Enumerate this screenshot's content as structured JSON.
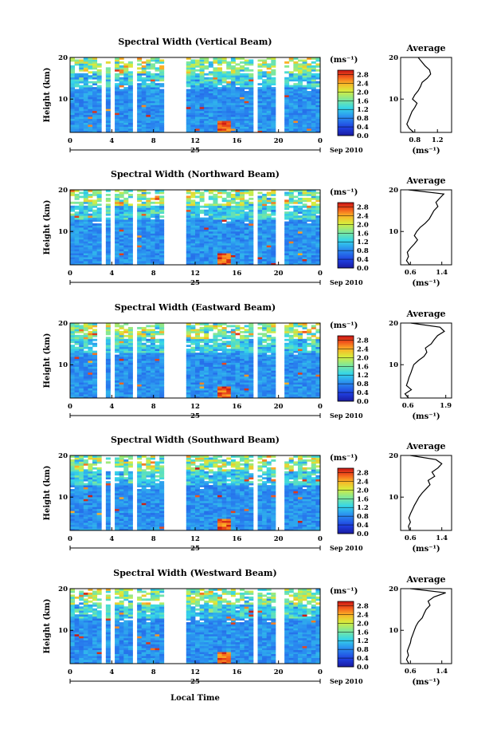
{
  "figure": {
    "xlabel": "Local Time",
    "date_label": "25",
    "month_label": "Sep 2010"
  },
  "chart_data": [
    {
      "type": "heatmap",
      "title": "Spectral Width (Vertical Beam)",
      "ylabel": "Height (km)",
      "x_ticks": [
        "0",
        "4",
        "8",
        "12",
        "16",
        "20",
        "0"
      ],
      "y_ticks": [
        "10",
        "20"
      ],
      "xlim": [
        0,
        24
      ],
      "ylim": [
        2,
        20
      ],
      "colorbar": {
        "unit": "(ms⁻¹)",
        "ticks": [
          "0.0",
          "0.4",
          "0.8",
          "1.2",
          "1.6",
          "2.0",
          "2.4",
          "2.8"
        ],
        "range": [
          0,
          3.0
        ]
      },
      "data_gaps_hours": [
        [
          3.0,
          3.4
        ],
        [
          3.7,
          4.2
        ],
        [
          5.8,
          6.3
        ],
        [
          9.1,
          11.3
        ],
        [
          17.4,
          18.2
        ],
        [
          19.9,
          20.4
        ],
        [
          20.8,
          21.1
        ]
      ],
      "average_profile": {
        "title": "Average",
        "xlabel": "(ms⁻¹)",
        "x_ticks": [
          "0.8",
          "1.2"
        ],
        "y_ticks": [
          "10",
          "20"
        ],
        "xlim": [
          0.55,
          1.45
        ],
        "heights": [
          2,
          3,
          4,
          5,
          6,
          7,
          8,
          9,
          10,
          11,
          12,
          13,
          14,
          15,
          16,
          17,
          18,
          19,
          20
        ],
        "values": [
          0.78,
          0.7,
          0.66,
          0.69,
          0.72,
          0.75,
          0.8,
          0.84,
          0.76,
          0.8,
          0.86,
          0.9,
          0.93,
          1.02,
          1.08,
          1.06,
          0.98,
          0.92,
          0.86
        ]
      }
    },
    {
      "type": "heatmap",
      "title": "Spectral Width (Northward Beam)",
      "ylabel": "Height (km)",
      "x_ticks": [
        "0",
        "4",
        "8",
        "12",
        "16",
        "20",
        "0"
      ],
      "y_ticks": [
        "10",
        "20"
      ],
      "xlim": [
        0,
        24
      ],
      "ylim": [
        2,
        20
      ],
      "colorbar": {
        "unit": "(ms⁻¹)",
        "ticks": [
          "0.0",
          "0.4",
          "0.8",
          "1.2",
          "1.6",
          "2.0",
          "2.4",
          "2.8"
        ],
        "range": [
          0,
          3.0
        ]
      },
      "data_gaps_hours": [
        [
          3.0,
          3.4
        ],
        [
          3.7,
          4.2
        ],
        [
          5.8,
          6.3
        ],
        [
          9.1,
          11.3
        ],
        [
          17.4,
          17.9
        ],
        [
          19.9,
          20.4
        ],
        [
          20.8,
          21.1
        ]
      ],
      "average_profile": {
        "title": "Average",
        "xlabel": "(ms⁻¹)",
        "x_ticks": [
          "0.6",
          "1.4"
        ],
        "y_ticks": [
          "10",
          "20"
        ],
        "xlim": [
          0.35,
          1.65
        ],
        "heights": [
          2,
          3,
          4,
          5,
          6,
          7,
          8,
          9,
          10,
          11,
          12,
          13,
          14,
          15,
          16,
          17,
          18,
          19,
          20
        ],
        "values": [
          0.58,
          0.5,
          0.55,
          0.52,
          0.6,
          0.7,
          0.78,
          0.7,
          0.76,
          0.85,
          0.98,
          1.08,
          1.14,
          1.2,
          1.3,
          1.25,
          1.35,
          1.45,
          0.55
        ]
      }
    },
    {
      "type": "heatmap",
      "title": "Spectral Width (Eastward Beam)",
      "ylabel": "Height (km)",
      "x_ticks": [
        "0",
        "4",
        "8",
        "12",
        "16",
        "20",
        "0"
      ],
      "y_ticks": [
        "10",
        "20"
      ],
      "xlim": [
        0,
        24
      ],
      "ylim": [
        2,
        20
      ],
      "colorbar": {
        "unit": "(ms⁻¹)",
        "ticks": [
          "0.0",
          "0.4",
          "0.8",
          "1.2",
          "1.6",
          "2.0",
          "2.4",
          "2.8"
        ],
        "range": [
          0,
          3.0
        ]
      },
      "data_gaps_hours": [
        [
          2.5,
          2.8
        ],
        [
          3.0,
          3.4
        ],
        [
          3.7,
          4.2
        ],
        [
          5.8,
          6.3
        ],
        [
          9.1,
          11.3
        ],
        [
          17.4,
          17.9
        ],
        [
          19.9,
          20.4
        ],
        [
          20.8,
          21.1
        ]
      ],
      "average_profile": {
        "title": "Average",
        "xlabel": "(ms⁻¹)",
        "x_ticks": [
          "0.6",
          "1.9"
        ],
        "y_ticks": [
          "10",
          "20"
        ],
        "xlim": [
          0.35,
          2.1
        ],
        "heights": [
          2,
          3,
          4,
          5,
          6,
          7,
          8,
          9,
          10,
          11,
          12,
          13,
          14,
          15,
          16,
          17,
          18,
          19,
          20
        ],
        "values": [
          0.62,
          0.5,
          0.72,
          0.55,
          0.6,
          0.64,
          0.7,
          0.75,
          0.8,
          0.96,
          1.15,
          1.25,
          1.2,
          1.4,
          1.5,
          1.62,
          1.85,
          1.7,
          0.7
        ]
      }
    },
    {
      "type": "heatmap",
      "title": "Spectral Width (Southward Beam)",
      "ylabel": "Height (km)",
      "x_ticks": [
        "0",
        "4",
        "8",
        "12",
        "16",
        "20",
        "0"
      ],
      "y_ticks": [
        "10",
        "20"
      ],
      "xlim": [
        0,
        24
      ],
      "ylim": [
        2,
        20
      ],
      "colorbar": {
        "unit": "(ms⁻¹)",
        "ticks": [
          "0.0",
          "0.4",
          "0.8",
          "1.2",
          "1.6",
          "2.0",
          "2.4",
          "2.8"
        ],
        "range": [
          0,
          3.0
        ]
      },
      "data_gaps_hours": [
        [
          3.0,
          3.4
        ],
        [
          3.7,
          4.2
        ],
        [
          5.8,
          6.3
        ],
        [
          9.1,
          11.3
        ],
        [
          17.4,
          17.9
        ],
        [
          19.9,
          20.4
        ],
        [
          20.8,
          21.1
        ]
      ],
      "average_profile": {
        "title": "Average",
        "xlabel": "(ms⁻¹)",
        "x_ticks": [
          "0.6",
          "1.4"
        ],
        "y_ticks": [
          "10",
          "20"
        ],
        "xlim": [
          0.35,
          1.65
        ],
        "heights": [
          2,
          3,
          4,
          5,
          6,
          7,
          8,
          9,
          10,
          11,
          12,
          13,
          14,
          15,
          16,
          17,
          18,
          19,
          20
        ],
        "values": [
          0.58,
          0.55,
          0.6,
          0.56,
          0.6,
          0.65,
          0.7,
          0.76,
          0.82,
          0.9,
          1.0,
          1.1,
          1.05,
          1.22,
          1.15,
          1.3,
          1.4,
          1.25,
          0.6
        ]
      }
    },
    {
      "type": "heatmap",
      "title": "Spectral Width (Westward Beam)",
      "ylabel": "Height (km)",
      "x_ticks": [
        "0",
        "4",
        "8",
        "12",
        "16",
        "20",
        "0"
      ],
      "y_ticks": [
        "10",
        "20"
      ],
      "xlim": [
        0,
        24
      ],
      "ylim": [
        2,
        20
      ],
      "colorbar": {
        "unit": "(ms⁻¹)",
        "ticks": [
          "0.0",
          "0.4",
          "0.8",
          "1.2",
          "1.6",
          "2.0",
          "2.4",
          "2.8"
        ],
        "range": [
          0,
          3.0
        ]
      },
      "data_gaps_hours": [
        [
          3.0,
          3.4
        ],
        [
          3.7,
          4.2
        ],
        [
          5.8,
          6.3
        ],
        [
          9.1,
          11.3
        ],
        [
          17.4,
          17.9
        ],
        [
          19.9,
          20.4
        ],
        [
          20.8,
          21.1
        ]
      ],
      "average_profile": {
        "title": "Average",
        "xlabel": "(ms⁻¹)",
        "x_ticks": [
          "0.6",
          "1.4"
        ],
        "y_ticks": [
          "10",
          "20"
        ],
        "xlim": [
          0.35,
          1.65
        ],
        "heights": [
          2,
          3,
          4,
          5,
          6,
          7,
          8,
          9,
          10,
          11,
          12,
          13,
          14,
          15,
          16,
          17,
          18,
          19,
          20
        ],
        "values": [
          0.56,
          0.5,
          0.55,
          0.52,
          0.56,
          0.6,
          0.62,
          0.66,
          0.7,
          0.74,
          0.8,
          0.9,
          0.95,
          1.0,
          1.1,
          1.05,
          1.2,
          1.5,
          0.6
        ]
      }
    }
  ]
}
